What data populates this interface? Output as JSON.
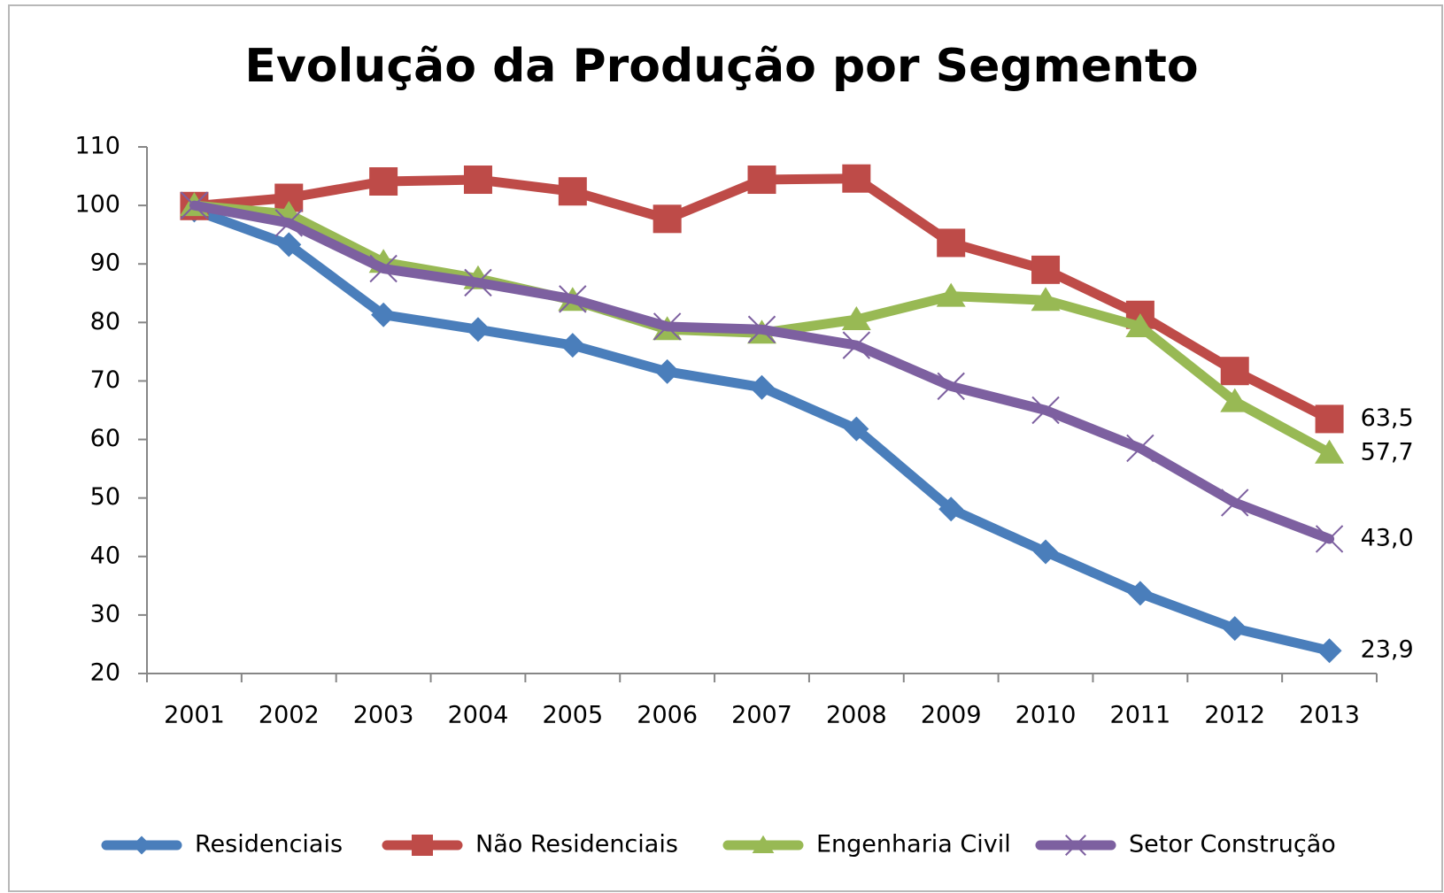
{
  "chart_data": {
    "type": "line",
    "title": "Evolução da Produção por Segmento",
    "categories": [
      "2001",
      "2002",
      "2003",
      "2004",
      "2005",
      "2006",
      "2007",
      "2008",
      "2009",
      "2010",
      "2011",
      "2012",
      "2013"
    ],
    "series": [
      {
        "name": "Residenciais",
        "color": "#4a7ebb",
        "marker": "diamond",
        "values": [
          99.2,
          93.3,
          81.3,
          78.8,
          76.1,
          71.6,
          68.9,
          61.8,
          48.1,
          40.8,
          33.7,
          27.7,
          23.9
        ],
        "value_labels": [
          null,
          null,
          null,
          null,
          null,
          null,
          null,
          null,
          null,
          null,
          null,
          null,
          "23,9"
        ]
      },
      {
        "name": "Não Residenciais",
        "color": "#be4b48",
        "marker": "square",
        "values": [
          99.9,
          101.3,
          104.1,
          104.4,
          102.4,
          97.7,
          104.4,
          104.6,
          93.6,
          89.0,
          81.3,
          71.7,
          63.5
        ],
        "value_labels": [
          null,
          null,
          null,
          null,
          null,
          null,
          null,
          null,
          null,
          null,
          null,
          null,
          "63,5"
        ]
      },
      {
        "name": "Engenharia Civil",
        "color": "#98b954",
        "marker": "triangle",
        "values": [
          100.0,
          98.5,
          90.3,
          87.5,
          83.8,
          78.8,
          78.2,
          80.5,
          84.5,
          83.8,
          79.3,
          66.5,
          57.7
        ],
        "value_labels": [
          null,
          null,
          null,
          null,
          null,
          null,
          null,
          null,
          null,
          null,
          null,
          null,
          "57,7"
        ]
      },
      {
        "name": "Setor Construção",
        "color": "#7d60a0",
        "marker": "x",
        "values": [
          100.0,
          97.0,
          89.2,
          86.8,
          84.0,
          79.3,
          78.8,
          76.1,
          69.1,
          65.0,
          58.5,
          49.2,
          43.0
        ],
        "value_labels": [
          null,
          null,
          null,
          null,
          null,
          null,
          null,
          null,
          null,
          null,
          null,
          null,
          "43,0"
        ]
      }
    ],
    "ylim": [
      20,
      110
    ],
    "yticks": [
      20,
      30,
      40,
      50,
      60,
      70,
      80,
      90,
      100,
      110
    ],
    "grid": false,
    "legend": "bottom"
  }
}
